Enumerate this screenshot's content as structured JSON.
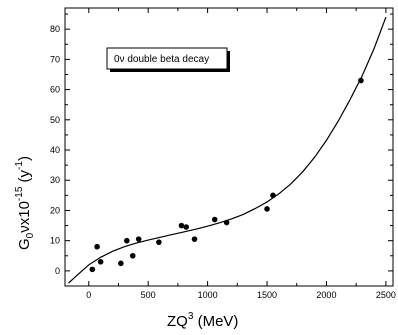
{
  "chart_data": {
    "type": "scatter",
    "annotation": "0ν double beta decay",
    "xlabel": {
      "base": "ZQ",
      "sup": "3",
      "tail": " (MeV)"
    },
    "ylabel": {
      "p1": "G",
      "sub": "0",
      "p2": "νx10",
      "sup": "-15",
      "p3": " (y",
      "sup2": "-1",
      "p4": ")"
    },
    "xlim": [
      -200,
      2560
    ],
    "ylim": [
      -5,
      87
    ],
    "xticks": [
      0,
      500,
      1000,
      1500,
      2000,
      2500
    ],
    "yticks": [
      0,
      10,
      20,
      30,
      40,
      50,
      60,
      70,
      80
    ],
    "xtick_labels": [
      "0",
      "500",
      "1000",
      "1500",
      "2000",
      "2500"
    ],
    "ytick_labels": [
      "0",
      "10",
      "20",
      "30",
      "40",
      "50",
      "60",
      "70",
      "80"
    ],
    "series": [
      {
        "kind": "points",
        "x": [
          30,
          70,
          100,
          270,
          320,
          370,
          420,
          590,
          780,
          820,
          890,
          1060,
          1160,
          1500,
          1550,
          2290
        ],
        "y": [
          0.5,
          8,
          3,
          2.5,
          10,
          5,
          10.5,
          9.5,
          15,
          14.5,
          10.5,
          17,
          16,
          20.5,
          25,
          63
        ]
      },
      {
        "kind": "fit-curve",
        "x": [
          -170,
          -100,
          0,
          100,
          200,
          300,
          400,
          500,
          600,
          700,
          800,
          900,
          1000,
          1100,
          1200,
          1300,
          1400,
          1500,
          1600,
          1700,
          1800,
          1900,
          2000,
          2100,
          2200,
          2300,
          2400,
          2500
        ],
        "y": [
          -4,
          -1.5,
          2,
          4.5,
          6.5,
          8,
          9.2,
          10.2,
          11.1,
          12,
          12.9,
          13.8,
          14.8,
          15.9,
          17.2,
          18.7,
          20.6,
          22.8,
          25.5,
          28.8,
          32.8,
          37.6,
          43.2,
          49.6,
          56.8,
          64.5,
          73.5,
          84
        ]
      }
    ]
  }
}
